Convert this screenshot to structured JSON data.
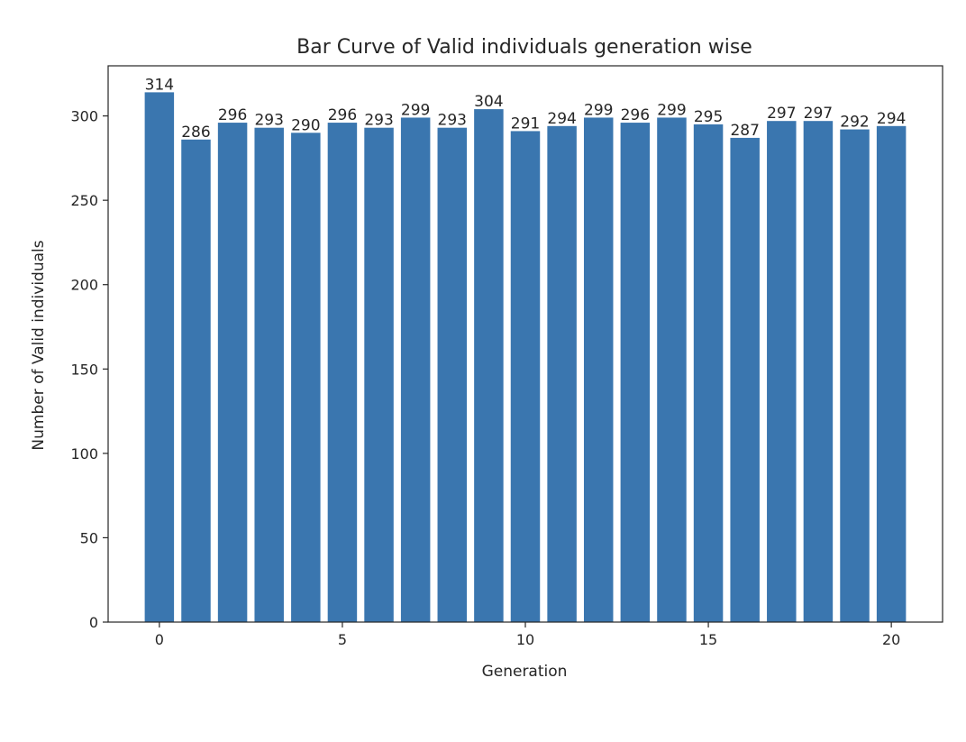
{
  "chart_data": {
    "type": "bar",
    "title": "Bar Curve of Valid individuals generation wise",
    "xlabel": "Generation",
    "ylabel": "Number of Valid individuals",
    "x": [
      0,
      1,
      2,
      3,
      4,
      5,
      6,
      7,
      8,
      9,
      10,
      11,
      12,
      13,
      14,
      15,
      16,
      17,
      18,
      19,
      20
    ],
    "values": [
      314,
      286,
      296,
      293,
      290,
      296,
      293,
      299,
      293,
      304,
      291,
      294,
      299,
      296,
      299,
      295,
      287,
      297,
      297,
      292,
      294
    ],
    "xlim": [
      -1.4,
      21.4
    ],
    "ylim": [
      0,
      329.7
    ],
    "xticks": [
      0,
      5,
      10,
      15,
      20
    ],
    "yticks": [
      0,
      50,
      100,
      150,
      200,
      250,
      300
    ],
    "bar_color": "#3a76af",
    "grid": false,
    "data_labels": true
  }
}
